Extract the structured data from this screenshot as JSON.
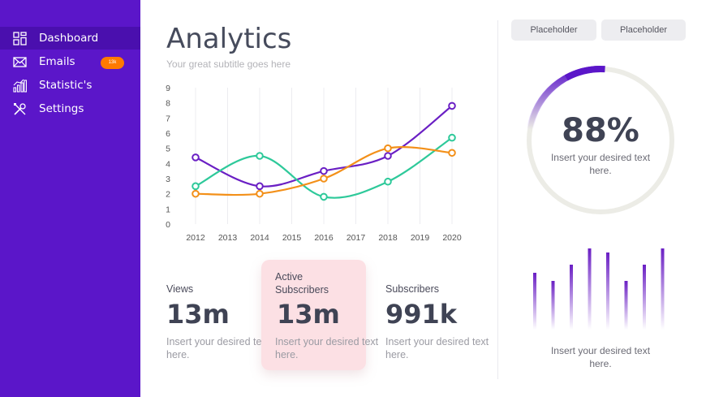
{
  "sidebar": {
    "items": [
      {
        "label": "Dashboard",
        "icon": "dashboard-icon",
        "active": true
      },
      {
        "label": "Emails",
        "icon": "mail-icon",
        "badge": "13k"
      },
      {
        "label": "Statistic's",
        "icon": "statistics-icon"
      },
      {
        "label": "Settings",
        "icon": "settings-icon"
      }
    ]
  },
  "header": {
    "title": "Analytics",
    "subtitle": "Your great subtitle goes here"
  },
  "chart_data": {
    "type": "line",
    "x": [
      "2012",
      "2013",
      "2014",
      "2015",
      "2016",
      "2017",
      "2018",
      "2019",
      "2020"
    ],
    "ylim": [
      0,
      9
    ],
    "yticks": [
      "0",
      "1",
      "2",
      "3",
      "4",
      "5",
      "6",
      "7",
      "8",
      "9"
    ],
    "grid": "vertical",
    "series": [
      {
        "color": "#6a1fc4",
        "points": [
          [
            2012,
            4.4
          ],
          [
            2014,
            2.5
          ],
          [
            2016,
            3.5
          ],
          [
            2018,
            4.5
          ],
          [
            2020,
            7.8
          ]
        ]
      },
      {
        "color": "#2ec99a",
        "points": [
          [
            2012,
            2.5
          ],
          [
            2014,
            4.5
          ],
          [
            2016,
            1.8
          ],
          [
            2018,
            2.8
          ],
          [
            2020,
            5.7
          ]
        ]
      },
      {
        "color": "#f39019",
        "points": [
          [
            2012,
            2.0
          ],
          [
            2014,
            2.0
          ],
          [
            2016,
            3.0
          ],
          [
            2018,
            5.0
          ],
          [
            2020,
            4.7
          ]
        ]
      }
    ]
  },
  "stats": [
    {
      "label": "Views",
      "value": "13m",
      "desc": "Insert your desired text here.",
      "highlight": false
    },
    {
      "label": "Active Subscribers",
      "value": "13m",
      "desc": "Insert your desired text here.",
      "highlight": true
    },
    {
      "label": "Subscribers",
      "value": "991k",
      "desc": "Insert your desired text here.",
      "highlight": false
    }
  ],
  "right_panel": {
    "buttons": [
      "Placeholder",
      "Placeholder"
    ],
    "donut": {
      "value": "88%",
      "percent": 88,
      "desc": "Insert your desired text here.",
      "color": "#5b16c9",
      "track_color": "#ececE6"
    },
    "bars": {
      "values": [
        0.7,
        0.6,
        0.8,
        1.0,
        0.95,
        0.6,
        0.8,
        1.0
      ],
      "desc": "Insert your desired text here.",
      "color": "#6a1fc4"
    }
  },
  "colors": {
    "sidebar": "#5b16c9",
    "sidebar_active": "#4a0fae",
    "badge": "#ff7a00",
    "highlight_card": "#fce0e4"
  }
}
